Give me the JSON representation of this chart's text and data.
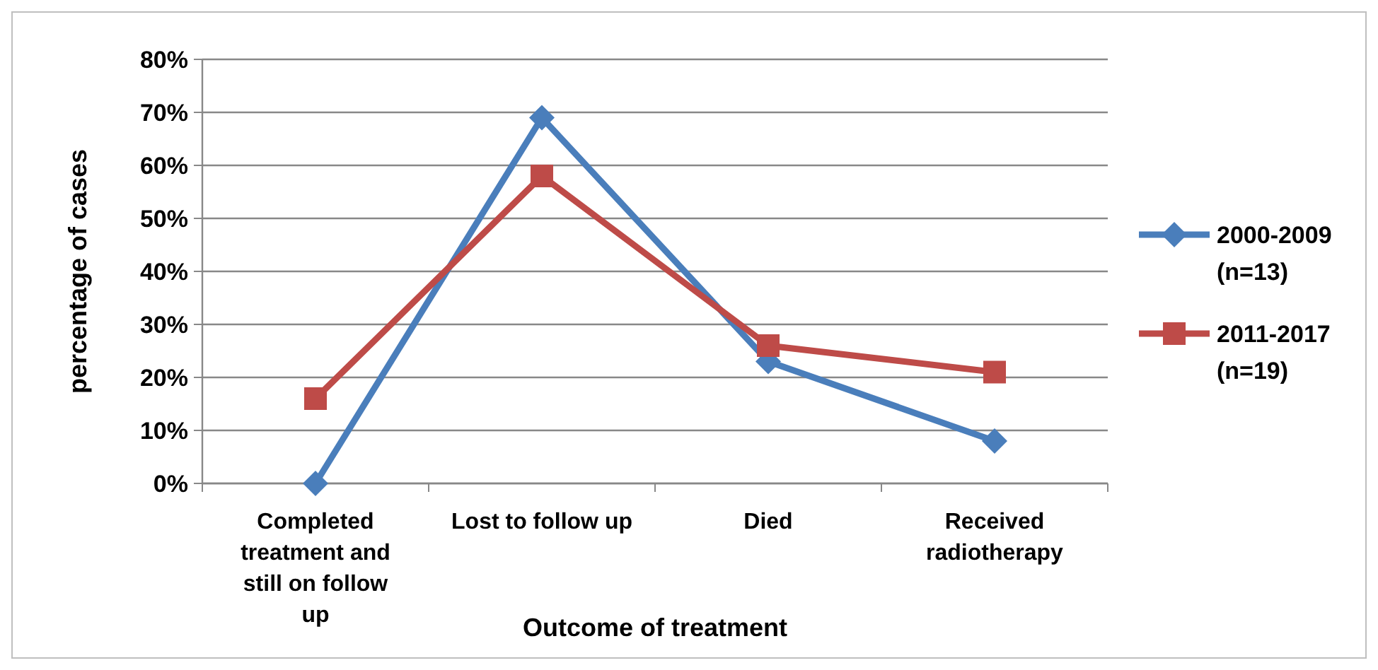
{
  "chart_data": {
    "type": "line",
    "xlabel": "Outcome of treatment",
    "ylabel": "percentage of cases",
    "categories": [
      "Completed treatment and still on follow up",
      "Lost to follow up",
      "Died",
      "Received radiotherapy"
    ],
    "ylim": [
      0,
      80
    ],
    "yticks": [
      {
        "value": 0,
        "label": "0%"
      },
      {
        "value": 10,
        "label": "10%"
      },
      {
        "value": 20,
        "label": "20%"
      },
      {
        "value": 30,
        "label": "30%"
      },
      {
        "value": 40,
        "label": "40%"
      },
      {
        "value": 50,
        "label": "50%"
      },
      {
        "value": 60,
        "label": "60%"
      },
      {
        "value": 70,
        "label": "70%"
      },
      {
        "value": 80,
        "label": "80%"
      }
    ],
    "grid": "y",
    "legend": "right",
    "line_style": "solid",
    "series": [
      {
        "name": "2000-2009 (n=13)",
        "color": "#4a7ebb",
        "marker": "diamond",
        "values": [
          0,
          69,
          23,
          8
        ]
      },
      {
        "name": "2011-2017 (n=19)",
        "color": "#be4b48",
        "marker": "square",
        "values": [
          16,
          58,
          26,
          21
        ]
      }
    ]
  }
}
